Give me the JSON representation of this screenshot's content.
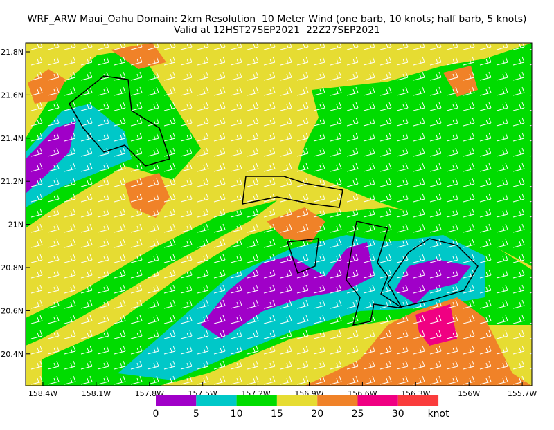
{
  "title": "WRF_ARW Maui_Oahu Domain: 2km Resolution  10 Meter Wind (one barb, 10 knots; half barb, 5 knots)",
  "subtitle": "Valid at 12HST27SEP2021  22Z27SEP2021",
  "lat_labels": [
    "21.8N",
    "21.6N",
    "21.4N",
    "21.2N",
    "21N",
    "20.8N",
    "20.6N",
    "20.4N"
  ],
  "lon_labels": [
    "158.4W",
    "158.1W",
    "157.8W",
    "157.5W",
    "157.2W",
    "156.9W",
    "156.6W",
    "156.3W",
    "156W",
    "155.7W"
  ],
  "colorbar": {
    "levels": [
      0,
      5,
      10,
      15,
      20,
      25,
      30
    ],
    "unit": "knot",
    "colors": [
      "#a000c8",
      "#00c8c8",
      "#00dc00",
      "#e6dc32",
      "#f08228",
      "#f00082",
      "#fa3c3c"
    ]
  }
}
